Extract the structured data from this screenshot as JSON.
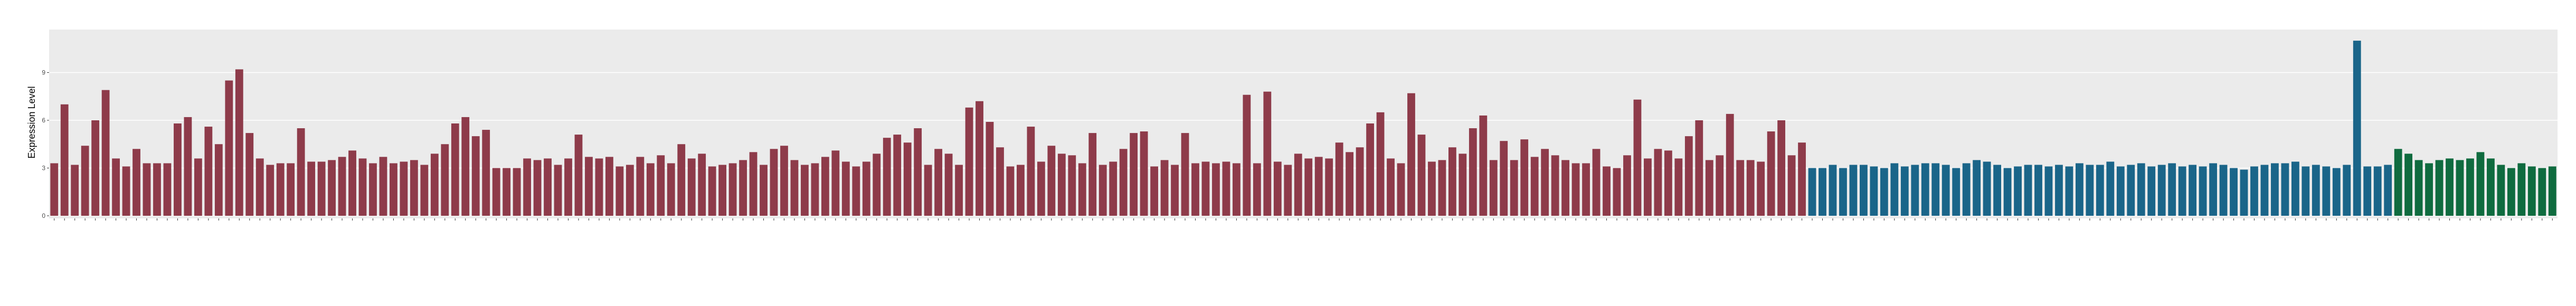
{
  "chart_data": {
    "type": "bar",
    "ylabel": "Expression Level",
    "ylim": [
      0,
      11.7
    ],
    "yticks": [
      0,
      3,
      6,
      9
    ],
    "grid": true,
    "categories": [
      null,
      null,
      null,
      null,
      null,
      null,
      null,
      null,
      null,
      null,
      null,
      null,
      null,
      null,
      null,
      null,
      null,
      null,
      null,
      null,
      null,
      null,
      null,
      null,
      null,
      null,
      null,
      null,
      null,
      null,
      null,
      null,
      null,
      null,
      null,
      null,
      null,
      null,
      null,
      null,
      null,
      null,
      null,
      null,
      null,
      null,
      null,
      null,
      null,
      null,
      null,
      null,
      null,
      null,
      null,
      null,
      null,
      null,
      null,
      null,
      null,
      null,
      null,
      null,
      null,
      null,
      null,
      null,
      null,
      null,
      null,
      null,
      null,
      null,
      null,
      null,
      null,
      null,
      null,
      null,
      null,
      null,
      null,
      null,
      null,
      null,
      null,
      null,
      null,
      null,
      null,
      null,
      null,
      null,
      null,
      null,
      null,
      null,
      null,
      null,
      null,
      null,
      null,
      null,
      null,
      null,
      null,
      null,
      null,
      null,
      null,
      null,
      null,
      null,
      null,
      null,
      null,
      null,
      null,
      null,
      null,
      null,
      null,
      null,
      null,
      null,
      null,
      null,
      null,
      null,
      null,
      null,
      null,
      null,
      null,
      null,
      null,
      null,
      null,
      null,
      null,
      null,
      null,
      null,
      null,
      null,
      null,
      null,
      null,
      null,
      null,
      null,
      null,
      null,
      null,
      null,
      null,
      null,
      null,
      null,
      null,
      null,
      null,
      null,
      null,
      null,
      null,
      null,
      null,
      null,
      null,
      null,
      null,
      null,
      null,
      null,
      null,
      null,
      null,
      null,
      null,
      null,
      null,
      null,
      null,
      null,
      null,
      null,
      null,
      null,
      null,
      null,
      null,
      null,
      null,
      null,
      null,
      null,
      null,
      null,
      null,
      null,
      null,
      null,
      null,
      null,
      null,
      null,
      null,
      null,
      null,
      null,
      null,
      null,
      null,
      null,
      null,
      null,
      null,
      null,
      null,
      null,
      null,
      null,
      null,
      null,
      null,
      null,
      null,
      null,
      null,
      null,
      null,
      null,
      null,
      null,
      null,
      null,
      null,
      null,
      null,
      null,
      null,
      null
    ],
    "series": [
      {
        "color": "#8e3b4a",
        "values": [
          3.3,
          7.0,
          3.2,
          4.4,
          6.0,
          7.9,
          3.6,
          3.1,
          4.2,
          3.3,
          3.3,
          3.3,
          5.8,
          6.2,
          3.6,
          5.6,
          4.5,
          8.5,
          9.2,
          5.2,
          3.6,
          3.2,
          3.3,
          3.3,
          5.5,
          3.4,
          3.4,
          3.5,
          3.7,
          4.1,
          3.6,
          3.3,
          3.7,
          3.3,
          3.4,
          3.5,
          3.2,
          3.9,
          4.5,
          5.8,
          6.2,
          5.0,
          5.4,
          3.0,
          3.0,
          3.0,
          3.6,
          3.5,
          3.6,
          3.2,
          3.6,
          5.1,
          3.7,
          3.6,
          3.7,
          3.1,
          3.2,
          3.7,
          3.3,
          3.8,
          3.3,
          4.5,
          3.6,
          3.9,
          3.1,
          3.2,
          3.3,
          3.5,
          4.0,
          3.2,
          4.2,
          4.4,
          3.5,
          3.2,
          3.3,
          3.7,
          4.1,
          3.4,
          3.1,
          3.4,
          3.9,
          4.9,
          5.1,
          4.6,
          5.5,
          3.2,
          4.2,
          3.9,
          3.2,
          6.8,
          7.2,
          5.9,
          4.3,
          3.1,
          3.2,
          5.6,
          3.4,
          4.4,
          3.9,
          3.8,
          3.3,
          5.2,
          3.2,
          3.4,
          4.2,
          5.2,
          5.3,
          3.1,
          3.5,
          3.2,
          5.2,
          3.3,
          3.4,
          3.3,
          3.4,
          3.3,
          7.6,
          3.3,
          7.8,
          3.4,
          3.2,
          3.9,
          3.6,
          3.7,
          3.6,
          4.6,
          4.0,
          4.3,
          5.8,
          6.5,
          3.6,
          3.3,
          7.7,
          5.1,
          3.4,
          3.5,
          4.3,
          3.9,
          5.5,
          6.3,
          3.5,
          4.7,
          3.5,
          4.8,
          3.7,
          4.2,
          3.8,
          3.5,
          3.3,
          3.3,
          4.2,
          3.1,
          3.0,
          3.8,
          7.3,
          3.6,
          4.2,
          4.1,
          3.6,
          5.0,
          6.0,
          3.5,
          3.8,
          6.4,
          3.5,
          3.5,
          3.4,
          5.3,
          6.0,
          3.8,
          4.6,
          null,
          null,
          null,
          null,
          null,
          null,
          null,
          null,
          null,
          null,
          null,
          null,
          null,
          null,
          null,
          null,
          null,
          null,
          null,
          null,
          null,
          null,
          null,
          null,
          null,
          null,
          null,
          null,
          null,
          null,
          null,
          null,
          null,
          null,
          null,
          null,
          null,
          null,
          null,
          null,
          null,
          null,
          null,
          null,
          null,
          null,
          null,
          null,
          null,
          null,
          null,
          null,
          null,
          null,
          null,
          null,
          null,
          null,
          null,
          null,
          null,
          null,
          null,
          null,
          null,
          null,
          null,
          null,
          null,
          null,
          null,
          null,
          null
        ]
      },
      {
        "color": "#1a6589",
        "values": [
          null,
          null,
          null,
          null,
          null,
          null,
          null,
          null,
          null,
          null,
          null,
          null,
          null,
          null,
          null,
          null,
          null,
          null,
          null,
          null,
          null,
          null,
          null,
          null,
          null,
          null,
          null,
          null,
          null,
          null,
          null,
          null,
          null,
          null,
          null,
          null,
          null,
          null,
          null,
          null,
          null,
          null,
          null,
          null,
          null,
          null,
          null,
          null,
          null,
          null,
          null,
          null,
          null,
          null,
          null,
          null,
          null,
          null,
          null,
          null,
          null,
          null,
          null,
          null,
          null,
          null,
          null,
          null,
          null,
          null,
          null,
          null,
          null,
          null,
          null,
          null,
          null,
          null,
          null,
          null,
          null,
          null,
          null,
          null,
          null,
          null,
          null,
          null,
          null,
          null,
          null,
          null,
          null,
          null,
          null,
          null,
          null,
          null,
          null,
          null,
          null,
          null,
          null,
          null,
          null,
          null,
          null,
          null,
          null,
          null,
          null,
          null,
          null,
          null,
          null,
          null,
          null,
          null,
          null,
          null,
          null,
          null,
          null,
          null,
          null,
          null,
          null,
          null,
          null,
          null,
          null,
          null,
          null,
          null,
          null,
          null,
          null,
          null,
          null,
          null,
          null,
          null,
          null,
          null,
          null,
          null,
          null,
          null,
          null,
          null,
          null,
          null,
          null,
          null,
          null,
          null,
          null,
          null,
          null,
          null,
          null,
          null,
          null,
          null,
          null,
          null,
          null,
          null,
          null,
          null,
          null,
          3.0,
          3.0,
          3.2,
          3.0,
          3.2,
          3.2,
          3.1,
          3.0,
          3.3,
          3.1,
          3.2,
          3.3,
          3.3,
          3.2,
          3.0,
          3.3,
          3.5,
          3.4,
          3.2,
          3.0,
          3.1,
          3.2,
          3.2,
          3.1,
          3.2,
          3.1,
          3.3,
          3.2,
          3.2,
          3.4,
          3.1,
          3.2,
          3.3,
          3.1,
          3.2,
          3.3,
          3.1,
          3.2,
          3.1,
          3.3,
          3.2,
          3.0,
          2.9,
          3.1,
          3.2,
          3.3,
          3.3,
          3.4,
          3.1,
          3.2,
          3.1,
          3.0,
          3.2,
          11.0,
          3.1,
          3.1,
          3.2,
          null,
          null,
          null,
          null,
          null,
          null,
          null,
          null,
          null,
          null,
          null,
          null,
          null,
          null,
          null,
          null
        ]
      },
      {
        "color": "#0f6b3f",
        "values": [
          null,
          null,
          null,
          null,
          null,
          null,
          null,
          null,
          null,
          null,
          null,
          null,
          null,
          null,
          null,
          null,
          null,
          null,
          null,
          null,
          null,
          null,
          null,
          null,
          null,
          null,
          null,
          null,
          null,
          null,
          null,
          null,
          null,
          null,
          null,
          null,
          null,
          null,
          null,
          null,
          null,
          null,
          null,
          null,
          null,
          null,
          null,
          null,
          null,
          null,
          null,
          null,
          null,
          null,
          null,
          null,
          null,
          null,
          null,
          null,
          null,
          null,
          null,
          null,
          null,
          null,
          null,
          null,
          null,
          null,
          null,
          null,
          null,
          null,
          null,
          null,
          null,
          null,
          null,
          null,
          null,
          null,
          null,
          null,
          null,
          null,
          null,
          null,
          null,
          null,
          null,
          null,
          null,
          null,
          null,
          null,
          null,
          null,
          null,
          null,
          null,
          null,
          null,
          null,
          null,
          null,
          null,
          null,
          null,
          null,
          null,
          null,
          null,
          null,
          null,
          null,
          null,
          null,
          null,
          null,
          null,
          null,
          null,
          null,
          null,
          null,
          null,
          null,
          null,
          null,
          null,
          null,
          null,
          null,
          null,
          null,
          null,
          null,
          null,
          null,
          null,
          null,
          null,
          null,
          null,
          null,
          null,
          null,
          null,
          null,
          null,
          null,
          null,
          null,
          null,
          null,
          null,
          null,
          null,
          null,
          null,
          null,
          null,
          null,
          null,
          null,
          null,
          null,
          null,
          null,
          null,
          null,
          null,
          null,
          null,
          null,
          null,
          null,
          null,
          null,
          null,
          null,
          null,
          null,
          null,
          null,
          null,
          null,
          null,
          null,
          null,
          null,
          null,
          null,
          null,
          null,
          null,
          null,
          null,
          null,
          null,
          null,
          null,
          null,
          null,
          null,
          null,
          null,
          null,
          null,
          null,
          null,
          null,
          null,
          null,
          null,
          null,
          null,
          null,
          null,
          null,
          null,
          null,
          null,
          null,
          null,
          null,
          null,
          4.2,
          3.9,
          3.5,
          3.3,
          3.5,
          3.6,
          3.5,
          3.6,
          4.0,
          3.6,
          3.2,
          3.0,
          3.3,
          3.1,
          3.0,
          3.1
        ]
      }
    ]
  }
}
